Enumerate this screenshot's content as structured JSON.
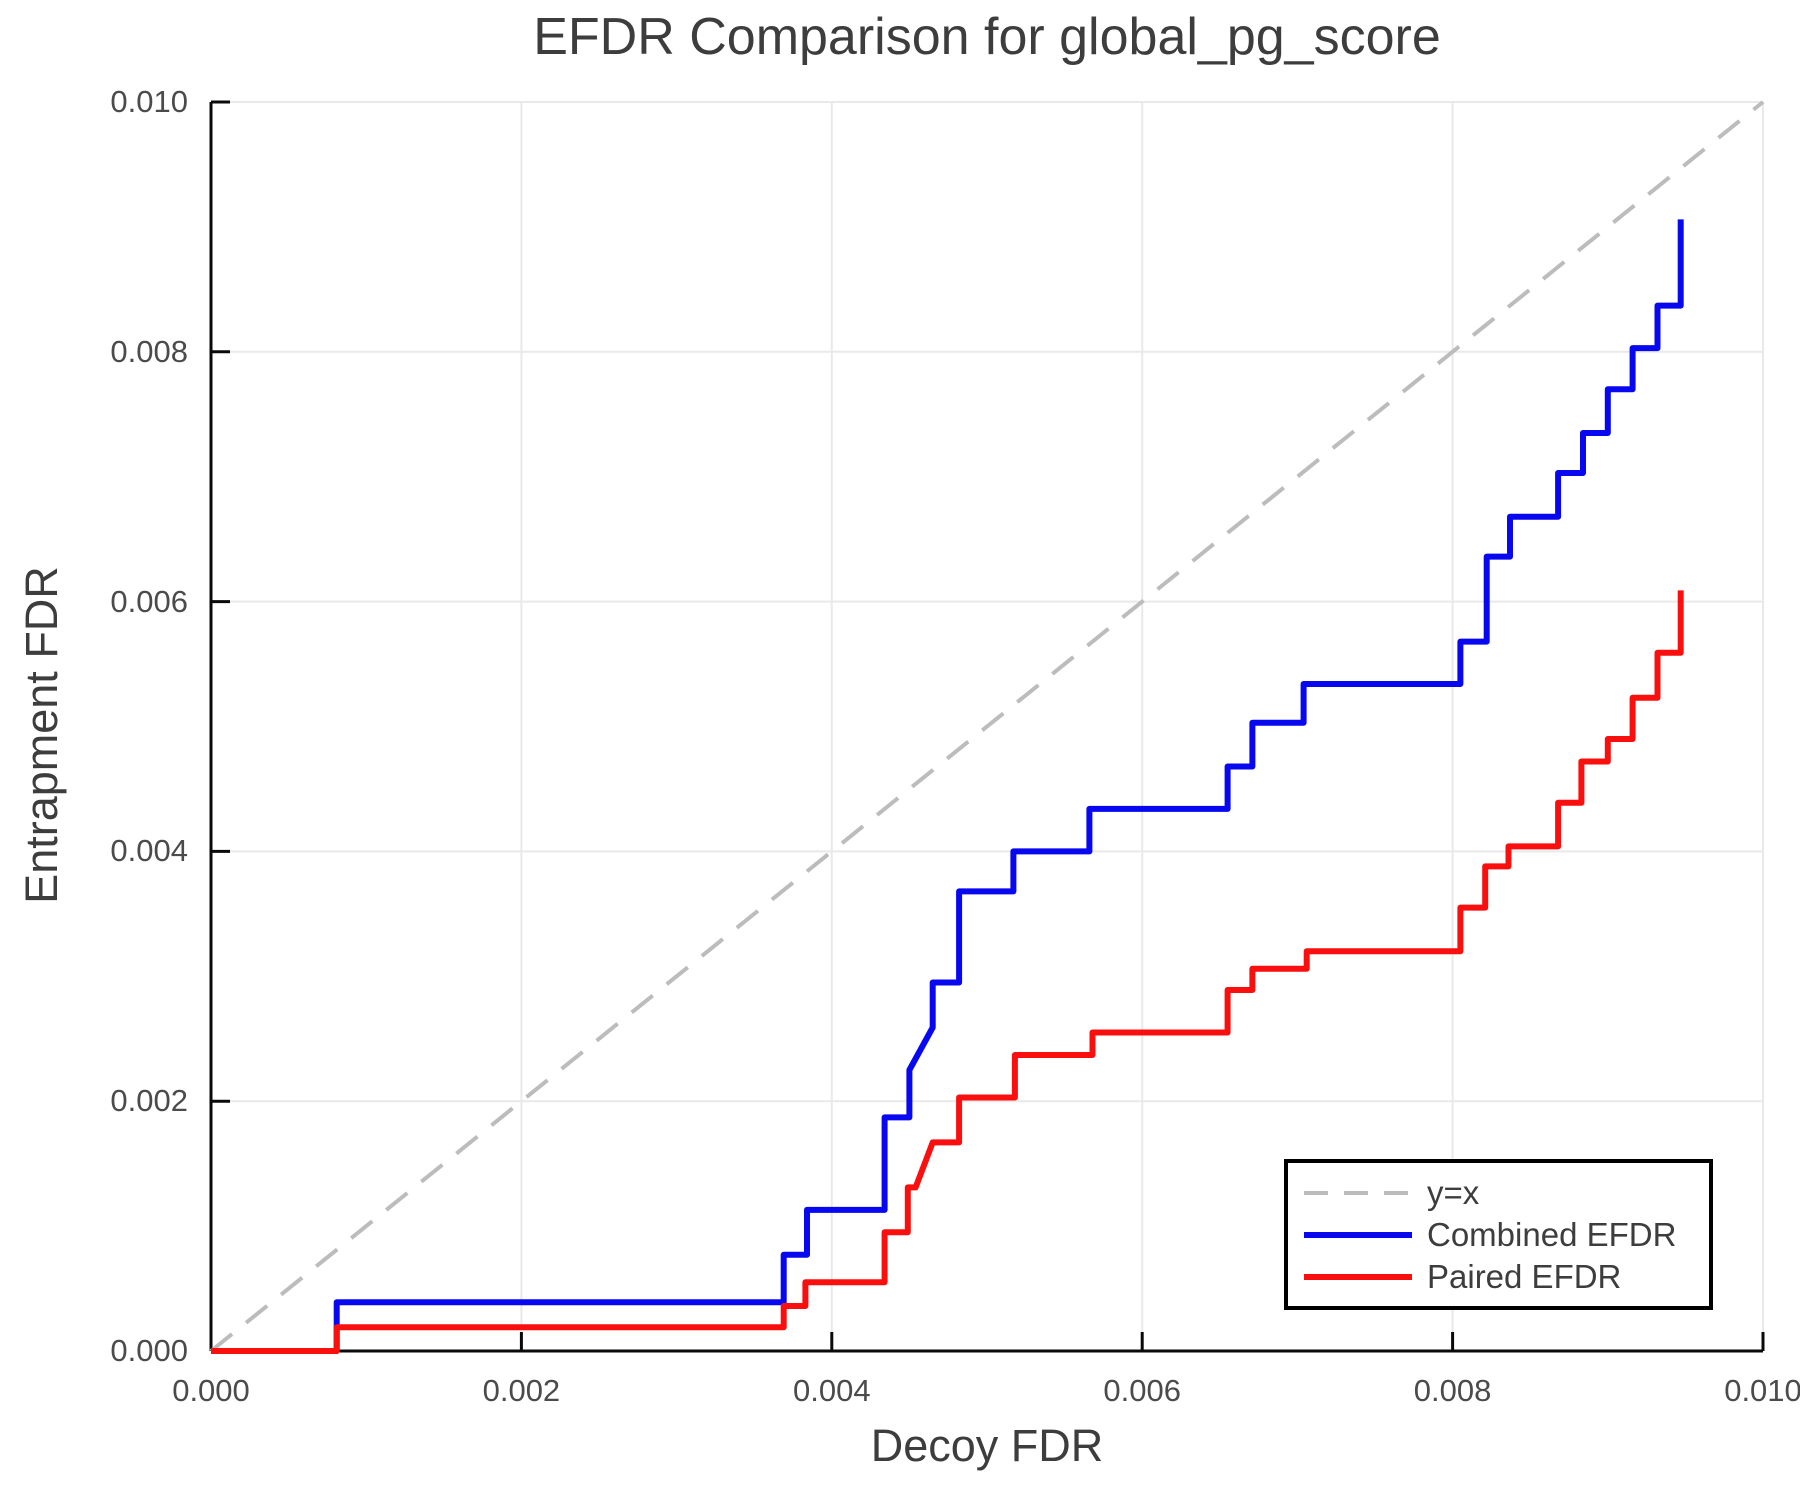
{
  "title": "EFDR Comparison for global_pg_score",
  "axes": {
    "xlabel": "Decoy FDR",
    "ylabel": "Entrapment FDR",
    "x_tick_labels": [
      "0.000",
      "0.002",
      "0.004",
      "0.006",
      "0.008",
      "0.010"
    ],
    "y_tick_labels": [
      "0.000",
      "0.002",
      "0.004",
      "0.006",
      "0.008",
      "0.010"
    ],
    "x_tick_values": [
      0,
      0.002,
      0.004,
      0.006,
      0.008,
      0.01
    ],
    "y_tick_values": [
      0,
      0.002,
      0.004,
      0.006,
      0.008,
      0.01
    ]
  },
  "colors": {
    "combined_efdr": "#0808f0",
    "paired_efdr": "#fa0f0f",
    "identity_line": "#bcbcbc",
    "gridline": "#e9e9e9",
    "spine": "#0a0a0a",
    "text": "#3d3d3d",
    "tick_text": "#4b4b4b"
  },
  "chart_data": {
    "type": "line",
    "title": "EFDR Comparison for global_pg_score",
    "xlabel": "Decoy FDR",
    "ylabel": "Entrapment FDR",
    "xlim": [
      0,
      0.01
    ],
    "ylim": [
      0,
      0.01
    ],
    "grid": true,
    "legend_position": "lower right",
    "points_format": "polyline-vertices (step corners expanded)",
    "series": [
      {
        "name": "y=x",
        "color": "#bcbcbc",
        "dash": true,
        "width": 4,
        "points": [
          [
            0,
            0
          ],
          [
            0.01,
            0.01
          ]
        ]
      },
      {
        "name": "Combined EFDR",
        "color": "#0808f0",
        "dash": false,
        "width": 6,
        "points": [
          [
            0,
            0
          ],
          [
            0.00081,
            0
          ],
          [
            0.00081,
            0.00039
          ],
          [
            0.00369,
            0.00039
          ],
          [
            0.00369,
            0.00077
          ],
          [
            0.00384,
            0.00077
          ],
          [
            0.00384,
            0.00113
          ],
          [
            0.00434,
            0.00113
          ],
          [
            0.00434,
            0.00187
          ],
          [
            0.0045,
            0.00187
          ],
          [
            0.0045,
            0.00225
          ],
          [
            0.00465,
            0.00259
          ],
          [
            0.00465,
            0.00295
          ],
          [
            0.00482,
            0.00295
          ],
          [
            0.00482,
            0.00368
          ],
          [
            0.00517,
            0.00368
          ],
          [
            0.00517,
            0.004
          ],
          [
            0.00566,
            0.004
          ],
          [
            0.00566,
            0.00434
          ],
          [
            0.00655,
            0.00434
          ],
          [
            0.00655,
            0.00468
          ],
          [
            0.00671,
            0.00468
          ],
          [
            0.00671,
            0.00503
          ],
          [
            0.00704,
            0.00503
          ],
          [
            0.00704,
            0.00534
          ],
          [
            0.00805,
            0.00534
          ],
          [
            0.00805,
            0.00568
          ],
          [
            0.00822,
            0.00568
          ],
          [
            0.00822,
            0.00636
          ],
          [
            0.00837,
            0.00636
          ],
          [
            0.00837,
            0.00668
          ],
          [
            0.00868,
            0.00668
          ],
          [
            0.00868,
            0.00703
          ],
          [
            0.00884,
            0.00703
          ],
          [
            0.00884,
            0.00735
          ],
          [
            0.009,
            0.00735
          ],
          [
            0.009,
            0.0077
          ],
          [
            0.00916,
            0.0077
          ],
          [
            0.00916,
            0.00803
          ],
          [
            0.00932,
            0.00803
          ],
          [
            0.00932,
            0.00837
          ],
          [
            0.00947,
            0.00837
          ],
          [
            0.00947,
            0.00906
          ]
        ]
      },
      {
        "name": "Paired EFDR",
        "color": "#fa0f0f",
        "dash": false,
        "width": 6,
        "points": [
          [
            0,
            0
          ],
          [
            0.00081,
            0
          ],
          [
            0.00081,
            0.00019
          ],
          [
            0.00369,
            0.00019
          ],
          [
            0.00369,
            0.00036
          ],
          [
            0.00383,
            0.00036
          ],
          [
            0.00383,
            0.00055
          ],
          [
            0.00434,
            0.00055
          ],
          [
            0.00434,
            0.00095
          ],
          [
            0.00449,
            0.00095
          ],
          [
            0.00449,
            0.00131
          ],
          [
            0.00454,
            0.00131
          ],
          [
            0.00465,
            0.00167
          ],
          [
            0.00482,
            0.00167
          ],
          [
            0.00482,
            0.00203
          ],
          [
            0.00518,
            0.00203
          ],
          [
            0.00518,
            0.00237
          ],
          [
            0.00568,
            0.00237
          ],
          [
            0.00568,
            0.00255
          ],
          [
            0.00655,
            0.00255
          ],
          [
            0.00655,
            0.00289
          ],
          [
            0.00671,
            0.00289
          ],
          [
            0.00671,
            0.00306
          ],
          [
            0.00706,
            0.00306
          ],
          [
            0.00706,
            0.0032
          ],
          [
            0.00805,
            0.0032
          ],
          [
            0.00805,
            0.00355
          ],
          [
            0.00821,
            0.00355
          ],
          [
            0.00821,
            0.00388
          ],
          [
            0.00836,
            0.00388
          ],
          [
            0.00836,
            0.00404
          ],
          [
            0.00868,
            0.00404
          ],
          [
            0.00868,
            0.00439
          ],
          [
            0.00883,
            0.00439
          ],
          [
            0.00883,
            0.00472
          ],
          [
            0.009,
            0.00472
          ],
          [
            0.009,
            0.0049
          ],
          [
            0.00916,
            0.0049
          ],
          [
            0.00916,
            0.00523
          ],
          [
            0.00932,
            0.00523
          ],
          [
            0.00932,
            0.00559
          ],
          [
            0.00947,
            0.00559
          ],
          [
            0.00947,
            0.00609
          ]
        ]
      }
    ]
  }
}
